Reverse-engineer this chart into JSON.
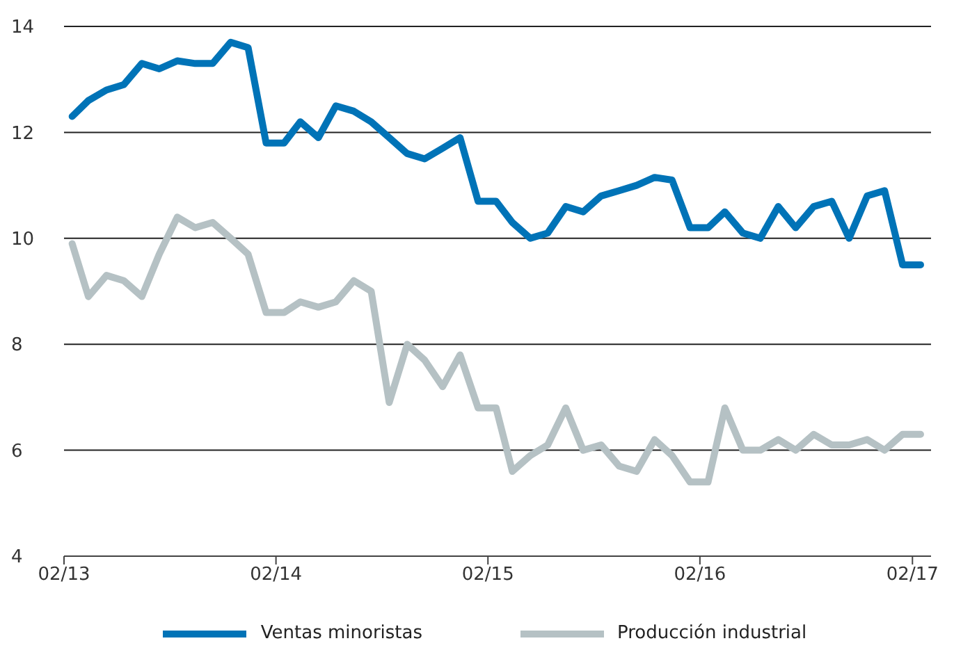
{
  "chart_data": {
    "type": "line",
    "x": [
      "2013-02-15",
      "2013-03-15",
      "2013-04-15",
      "2013-05-15",
      "2013-06-15",
      "2013-07-15",
      "2013-08-15",
      "2013-09-15",
      "2013-10-15",
      "2013-11-15",
      "2013-12-15",
      "2014-01-15",
      "2014-02-15",
      "2014-03-15",
      "2014-04-15",
      "2014-05-15",
      "2014-06-15",
      "2014-07-15",
      "2014-08-15",
      "2014-09-15",
      "2014-10-15",
      "2014-11-15",
      "2014-12-15",
      "2015-01-15",
      "2015-02-15",
      "2015-03-15",
      "2015-04-15",
      "2015-05-15",
      "2015-06-15",
      "2015-07-15",
      "2015-08-15",
      "2015-09-15",
      "2015-10-15",
      "2015-11-15",
      "2015-12-15",
      "2016-01-15",
      "2016-02-15",
      "2016-03-15",
      "2016-04-15",
      "2016-05-15",
      "2016-06-15",
      "2016-07-15",
      "2016-08-15",
      "2016-09-15",
      "2016-10-15",
      "2016-11-15",
      "2016-12-15",
      "2017-01-15",
      "2017-02-15"
    ],
    "series": [
      {
        "name": "Ventas minoristas",
        "color": "#0073b7",
        "values": [
          12.3,
          12.6,
          12.8,
          12.9,
          13.3,
          13.2,
          13.35,
          13.3,
          13.3,
          13.7,
          13.6,
          11.8,
          11.8,
          12.2,
          11.9,
          12.5,
          12.4,
          12.2,
          11.9,
          11.6,
          11.5,
          11.7,
          11.9,
          10.7,
          10.7,
          10.3,
          10.0,
          10.1,
          10.6,
          10.5,
          10.8,
          10.9,
          11.0,
          11.15,
          11.1,
          10.2,
          10.2,
          10.5,
          10.1,
          10.0,
          10.6,
          10.2,
          10.6,
          10.7,
          10.0,
          10.8,
          10.9,
          9.5,
          9.5
        ]
      },
      {
        "name": "Producción industrial",
        "color": "#b5c1c4",
        "values": [
          9.9,
          8.9,
          9.3,
          9.2,
          8.9,
          9.7,
          10.4,
          10.2,
          10.3,
          10.0,
          9.7,
          8.6,
          8.6,
          8.8,
          8.7,
          8.8,
          9.2,
          9.0,
          6.9,
          8.0,
          7.7,
          7.2,
          7.8,
          6.8,
          6.8,
          5.6,
          5.9,
          6.1,
          6.8,
          6.0,
          6.1,
          5.7,
          5.6,
          6.2,
          5.9,
          5.4,
          5.4,
          6.8,
          6.0,
          6.0,
          6.2,
          6.0,
          6.3,
          6.1,
          6.1,
          6.2,
          6.0,
          6.3,
          6.3
        ]
      }
    ],
    "xlim": [
      "2013-02-01",
      "2017-03-05"
    ],
    "xticks": [
      {
        "value": "2013-02-01",
        "label": "02/13"
      },
      {
        "value": "2014-02-01",
        "label": "02/14"
      },
      {
        "value": "2015-02-01",
        "label": "02/15"
      },
      {
        "value": "2016-02-01",
        "label": "02/16"
      },
      {
        "value": "2017-02-01",
        "label": "02/17"
      }
    ],
    "ylim": [
      4,
      14
    ],
    "yticks": [
      4,
      6,
      8,
      10,
      12,
      14
    ],
    "grid": "y",
    "legend": "bottom",
    "marker": "none",
    "line_style": "solid"
  }
}
